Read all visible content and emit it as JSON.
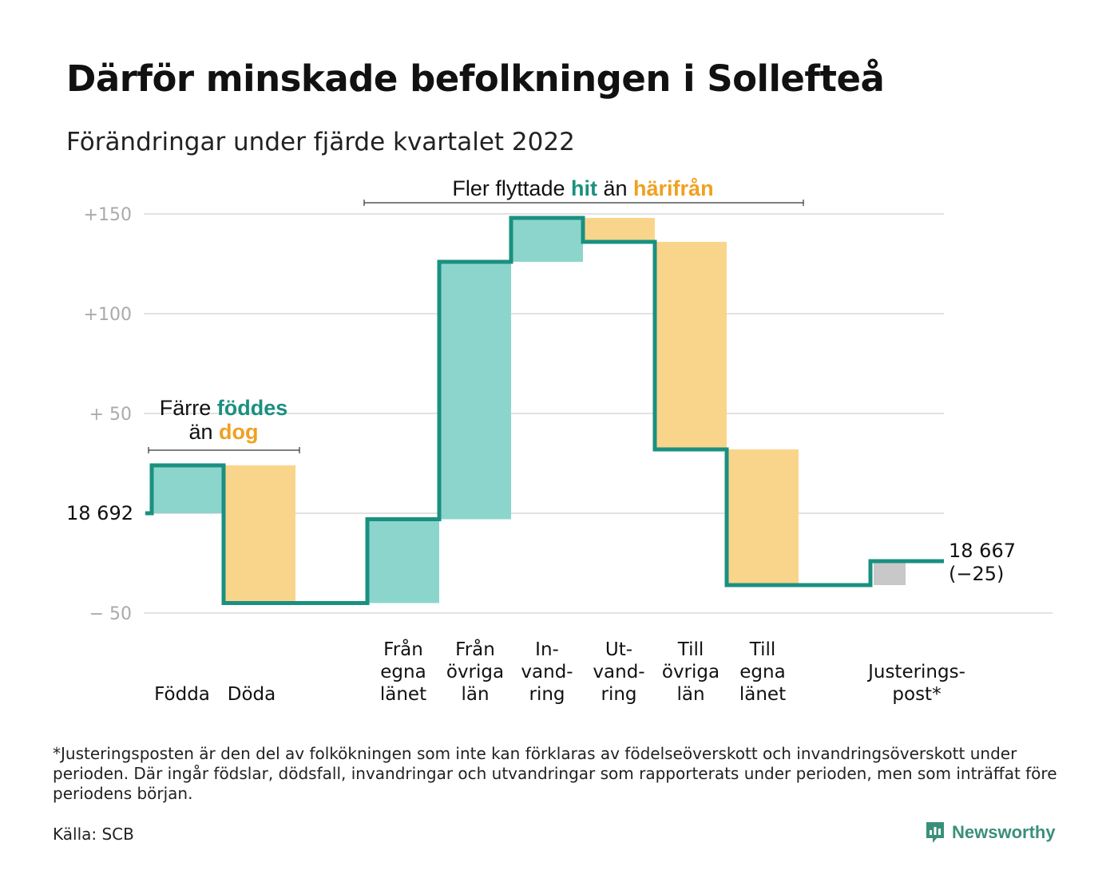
{
  "title": "Därför minskade befolkningen i Sollefteå",
  "subtitle": "Förändringar under fjärde kvartalet 2022",
  "footnote": "*Justeringsposten är den del av folkökningen som inte kan förklaras av födelseöverskott och invandringsöverskott under perioden. Där ingår födslar, dödsfall, invandringar och utvandringar som rapporterats under perioden, men som inträffat före periodens början.",
  "source": "Källa: SCB",
  "brand": "Newsworthy",
  "colors": {
    "increase": "#8cd5cc",
    "decrease": "#f9d58c",
    "adjustment": "#c8c8c8",
    "line": "#1a9080",
    "grid": "#e2e2e2",
    "teal_text": "#1a9080",
    "orange_text": "#f0a020",
    "axis_text": "#aaaaaa"
  },
  "annotations": {
    "births_deaths": {
      "line1_prefix": "Färre ",
      "line1_highlight": "föddes",
      "line2_prefix": "än ",
      "line2_highlight": "dog"
    },
    "migration": {
      "prefix": "Fler flyttade ",
      "highlight1": "hit",
      "middle": " än ",
      "highlight2": "härifrån"
    }
  },
  "chart_data": {
    "type": "waterfall",
    "start_value": 18692,
    "start_label": "18 692",
    "end_value": 18667,
    "end_label": "18 667",
    "net_change_label": "(−25)",
    "y_axis": {
      "range": [
        -50,
        150
      ],
      "ticks": [
        {
          "value": 150,
          "label": "+150"
        },
        {
          "value": 100,
          "label": "+100"
        },
        {
          "value": 50,
          "label": "+ 50"
        },
        {
          "value": -50,
          "label": "− 50"
        }
      ],
      "grid": true
    },
    "steps": [
      {
        "lines": [
          "Födda"
        ],
        "change": 24,
        "kind": "increase"
      },
      {
        "lines": [
          "Döda"
        ],
        "change": -69,
        "kind": "decrease"
      },
      {
        "lines": [],
        "change": 0,
        "kind": "gap"
      },
      {
        "lines": [
          "Från",
          "egna",
          "länet"
        ],
        "change": 42,
        "kind": "increase"
      },
      {
        "lines": [
          "Från",
          "övriga",
          "län"
        ],
        "change": 129,
        "kind": "increase"
      },
      {
        "lines": [
          "In-",
          "vand-",
          "ring"
        ],
        "change": 22,
        "kind": "increase"
      },
      {
        "lines": [
          "Ut-",
          "vand-",
          "ring"
        ],
        "change": -12,
        "kind": "decrease"
      },
      {
        "lines": [
          "Till",
          "övriga",
          "län"
        ],
        "change": -104,
        "kind": "decrease"
      },
      {
        "lines": [
          "Till",
          "egna",
          "länet"
        ],
        "change": -68,
        "kind": "decrease"
      },
      {
        "lines": [],
        "change": 0,
        "kind": "gap"
      },
      {
        "lines": [
          "Justerings-",
          "post*"
        ],
        "change": 12,
        "kind": "adjustment"
      }
    ]
  }
}
